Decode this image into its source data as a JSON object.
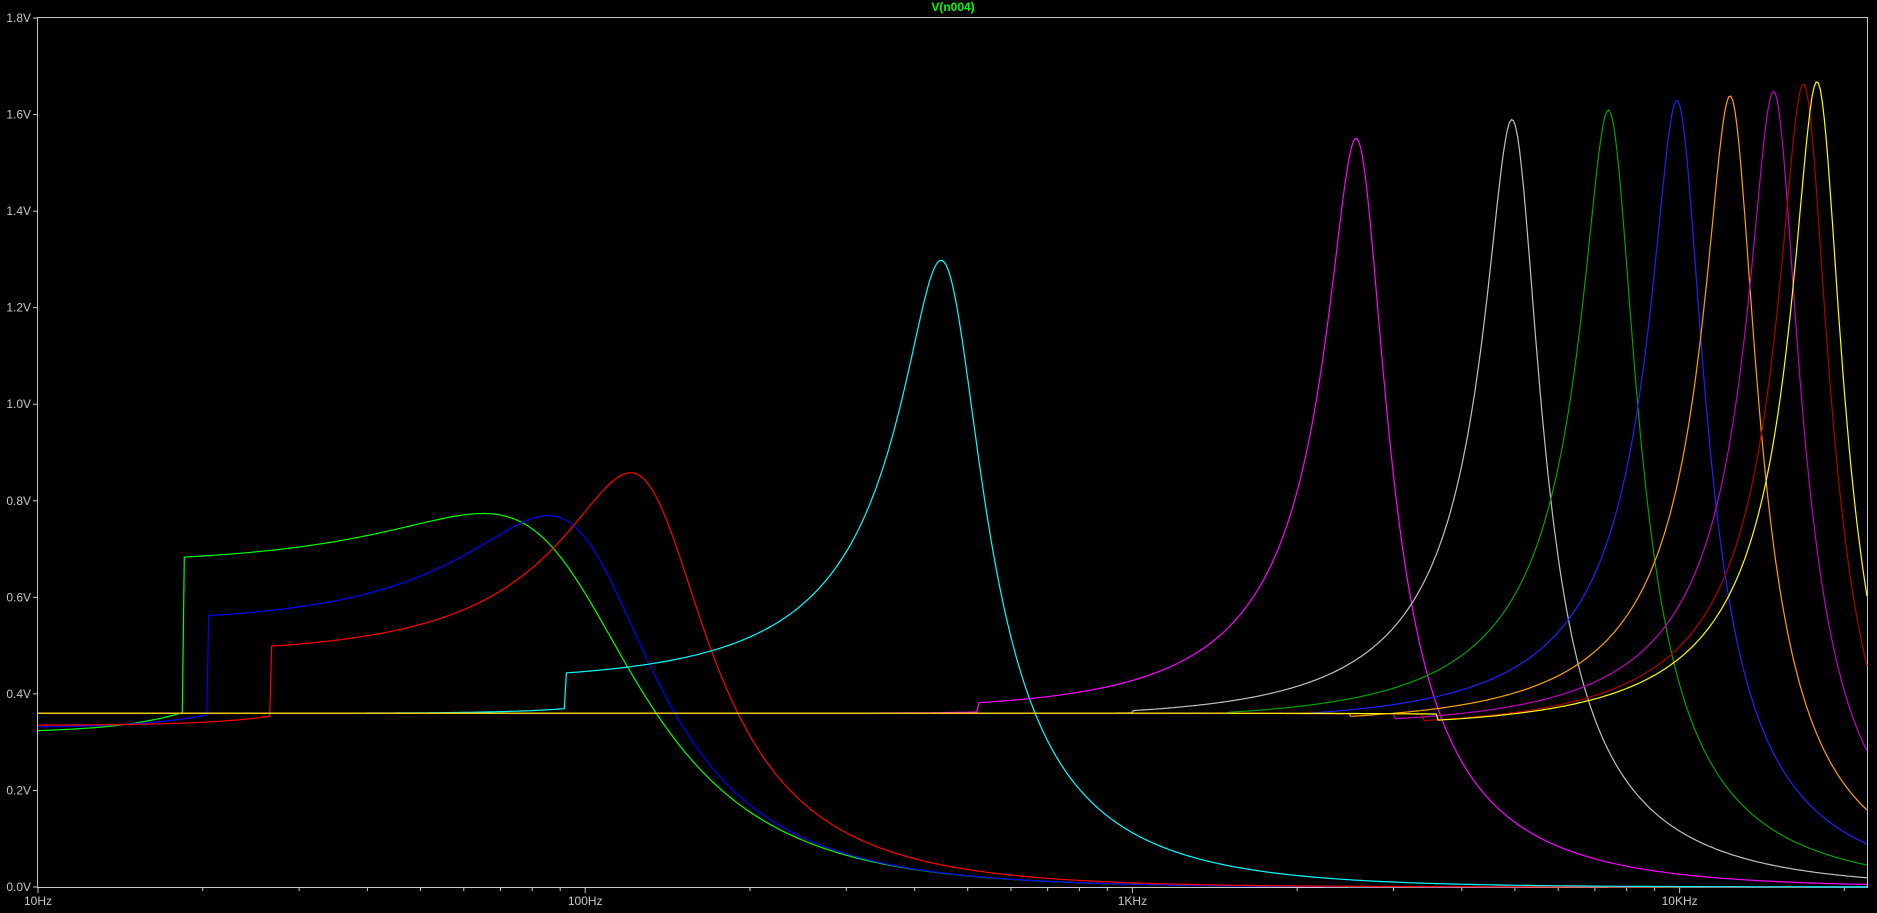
{
  "chart_data": {
    "type": "line",
    "title": "V(n004)",
    "x_scale": "log",
    "xlim": [
      10,
      22000
    ],
    "ylim": [
      0,
      1.8
    ],
    "grid": false,
    "x_ticks": [
      {
        "value": 10,
        "label": "10Hz"
      },
      {
        "value": 100,
        "label": "100Hz"
      },
      {
        "value": 1000,
        "label": "1KHz"
      },
      {
        "value": 10000,
        "label": "10KHz"
      }
    ],
    "y_ticks": [
      {
        "value": 0,
        "label": "0.0V"
      },
      {
        "value": 0.2,
        "label": "0.2V"
      },
      {
        "value": 0.4,
        "label": "0.4V"
      },
      {
        "value": 0.6,
        "label": "0.6V"
      },
      {
        "value": 0.8,
        "label": "0.8V"
      },
      {
        "value": 1.0,
        "label": "1.0V"
      },
      {
        "value": 1.2,
        "label": "1.2V"
      },
      {
        "value": 1.4,
        "label": "1.4V"
      },
      {
        "value": 1.6,
        "label": "1.6V"
      },
      {
        "value": 1.8,
        "label": "1.8V"
      }
    ],
    "series": [
      {
        "color": "#00ff00",
        "peak_freq": 92,
        "peak_v": 0.67,
        "base_v": 0.32,
        "q": 1.0
      },
      {
        "color": "#0000ff",
        "peak_freq": 102,
        "peak_v": 0.71,
        "base_v": 0.33,
        "q": 1.3
      },
      {
        "color": "#ff0000",
        "peak_freq": 133,
        "peak_v": 0.82,
        "base_v": 0.335,
        "q": 1.7
      },
      {
        "color": "#00ffff",
        "peak_freq": 460,
        "peak_v": 1.28,
        "base_v": 0.36,
        "q": 3.0
      },
      {
        "color": "#ff00ff",
        "peak_freq": 2600,
        "peak_v": 1.54,
        "base_v": 0.36,
        "q": 4.2
      },
      {
        "color": "#c0c0c0",
        "peak_freq": 5000,
        "peak_v": 1.58,
        "base_v": 0.36,
        "q": 4.5
      },
      {
        "color": "#00a000",
        "peak_freq": 7500,
        "peak_v": 1.6,
        "base_v": 0.36,
        "q": 4.6
      },
      {
        "color": "#2020ff",
        "peak_freq": 10000,
        "peak_v": 1.62,
        "base_v": 0.36,
        "q": 4.7
      },
      {
        "color": "#ffa000",
        "peak_freq": 12500,
        "peak_v": 1.63,
        "base_v": 0.36,
        "q": 4.8
      },
      {
        "color": "#c000c0",
        "peak_freq": 15000,
        "peak_v": 1.64,
        "base_v": 0.36,
        "q": 4.9
      },
      {
        "color": "#b00000",
        "peak_freq": 17000,
        "peak_v": 1.655,
        "base_v": 0.36,
        "q": 5.0
      },
      {
        "color": "#ffff00",
        "peak_freq": 18000,
        "peak_v": 1.66,
        "base_v": 0.36,
        "q": 5.0
      }
    ]
  }
}
